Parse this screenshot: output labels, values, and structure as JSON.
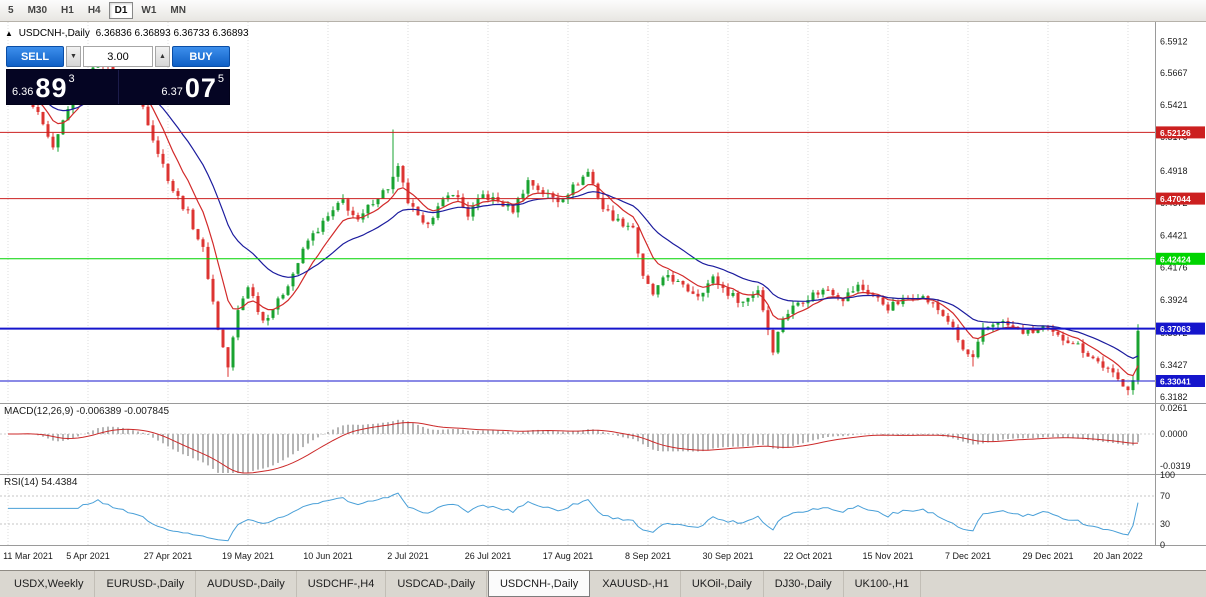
{
  "toolbar": {
    "timeframes": [
      "5",
      "M30",
      "H1",
      "H4",
      "D1",
      "W1",
      "MN"
    ],
    "active_timeframe": "D1"
  },
  "header": {
    "collapse_icon": "▲",
    "title": "USDCNH-,Daily",
    "ohlc": "6.36836 6.36893 6.36733 6.36893"
  },
  "trade_panel": {
    "sell_label": "SELL",
    "buy_label": "BUY",
    "volume": "3.00",
    "volume_down_glyph": "▼",
    "volume_up_glyph": "▲",
    "sell_price_main": "6.36",
    "sell_price_big": "89",
    "sell_price_sup": "3",
    "buy_price_main": "6.37",
    "buy_price_big": "07",
    "buy_price_sup": "5"
  },
  "chart_data": {
    "type": "candlestick",
    "symbol": "USDCNH-,Daily",
    "x_labels": [
      "11 Mar 2021",
      "5 Apr 2021",
      "27 Apr 2021",
      "19 May 2021",
      "10 Jun 2021",
      "2 Jul 2021",
      "26 Jul 2021",
      "17 Aug 2021",
      "8 Sep 2021",
      "30 Sep 2021",
      "22 Oct 2021",
      "15 Nov 2021",
      "7 Dec 2021",
      "29 Dec 2021",
      "20 Jan 2022"
    ],
    "candles_per_label": 16,
    "num_candles": 227,
    "price_range_top": 6.606,
    "price_range_bottom": 6.3135,
    "price_axis_ticks": [
      "6.5912",
      "6.5667",
      "6.5421",
      "6.5176",
      "6.4918",
      "6.4672",
      "6.4421",
      "6.4176",
      "6.3924",
      "6.3672",
      "6.3427",
      "6.3182"
    ],
    "hlines": [
      {
        "price": 6.52126,
        "label": "6.52126",
        "color": "#cc2020",
        "width": 1
      },
      {
        "price": 6.47044,
        "label": "6.47044",
        "color": "#cc2020",
        "width": 1
      },
      {
        "price": 6.42424,
        "label": "6.42424",
        "color": "#00d400",
        "width": 1
      },
      {
        "price": 6.37063,
        "label": "6.37063",
        "color": "#1515cc",
        "width": 2
      },
      {
        "price": 6.33041,
        "label": "6.33041",
        "color": "#1515cc",
        "width": 1
      }
    ],
    "close_waypoints": [
      [
        0,
        6.547
      ],
      [
        3,
        6.553
      ],
      [
        6,
        6.534
      ],
      [
        9,
        6.507
      ],
      [
        12,
        6.541
      ],
      [
        15,
        6.563
      ],
      [
        18,
        6.579
      ],
      [
        21,
        6.566
      ],
      [
        24,
        6.553
      ],
      [
        27,
        6.541
      ],
      [
        30,
        6.506
      ],
      [
        33,
        6.477
      ],
      [
        36,
        6.459
      ],
      [
        39,
        6.431
      ],
      [
        42,
        6.371
      ],
      [
        44,
        6.341
      ],
      [
        46,
        6.384
      ],
      [
        48,
        6.404
      ],
      [
        51,
        6.377
      ],
      [
        54,
        6.391
      ],
      [
        57,
        6.413
      ],
      [
        60,
        6.438
      ],
      [
        64,
        6.456
      ],
      [
        67,
        6.469
      ],
      [
        70,
        6.452
      ],
      [
        73,
        6.469
      ],
      [
        76,
        6.479
      ],
      [
        78,
        6.493
      ],
      [
        80,
        6.468
      ],
      [
        83,
        6.449
      ],
      [
        86,
        6.463
      ],
      [
        89,
        6.476
      ],
      [
        92,
        6.458
      ],
      [
        95,
        6.473
      ],
      [
        98,
        6.468
      ],
      [
        101,
        6.462
      ],
      [
        104,
        6.484
      ],
      [
        107,
        6.475
      ],
      [
        110,
        6.469
      ],
      [
        113,
        6.479
      ],
      [
        116,
        6.491
      ],
      [
        119,
        6.463
      ],
      [
        122,
        6.453
      ],
      [
        125,
        6.449
      ],
      [
        127,
        6.409
      ],
      [
        129,
        6.397
      ],
      [
        132,
        6.412
      ],
      [
        135,
        6.402
      ],
      [
        138,
        6.397
      ],
      [
        141,
        6.409
      ],
      [
        144,
        6.398
      ],
      [
        147,
        6.391
      ],
      [
        150,
        6.401
      ],
      [
        153,
        6.355
      ],
      [
        155,
        6.379
      ],
      [
        158,
        6.391
      ],
      [
        161,
        6.397
      ],
      [
        164,
        6.401
      ],
      [
        167,
        6.394
      ],
      [
        170,
        6.403
      ],
      [
        173,
        6.396
      ],
      [
        176,
        6.387
      ],
      [
        179,
        6.392
      ],
      [
        182,
        6.397
      ],
      [
        185,
        6.389
      ],
      [
        188,
        6.377
      ],
      [
        191,
        6.354
      ],
      [
        193,
        6.347
      ],
      [
        195,
        6.369
      ],
      [
        198,
        6.377
      ],
      [
        201,
        6.371
      ],
      [
        204,
        6.367
      ],
      [
        207,
        6.371
      ],
      [
        210,
        6.364
      ],
      [
        213,
        6.361
      ],
      [
        216,
        6.351
      ],
      [
        219,
        6.342
      ],
      [
        222,
        6.331
      ],
      [
        224,
        6.326
      ],
      [
        225,
        6.331
      ],
      [
        226,
        6.3689
      ]
    ],
    "spikes": [
      {
        "i": 18,
        "high": 6.5865
      },
      {
        "i": 44,
        "low": 6.3335
      },
      {
        "i": 77,
        "high": 6.5235
      },
      {
        "i": 193,
        "low": 6.3415
      },
      {
        "i": 224,
        "low": 6.3195
      },
      {
        "i": 226,
        "high": 6.374
      }
    ],
    "indicators": {
      "ma_fast": {
        "period": 8,
        "color": "#d22a2a"
      },
      "ma_slow": {
        "period": 22,
        "color": "#1c1c9e"
      },
      "macd": {
        "label": "MACD(12,26,9) -0.006389 -0.007845",
        "ticks": [
          "0.0261",
          "0.0000",
          "-0.0319"
        ],
        "vmax": 0.03,
        "vmin": -0.04
      },
      "rsi": {
        "label": "RSI(14) 54.4384",
        "ticks": [
          "100",
          "70",
          "30",
          "0"
        ],
        "levels": [
          70,
          30
        ]
      }
    },
    "colors": {
      "up": "#1aa331",
      "down": "#dd3432",
      "grid": "#dcdcdc",
      "macd_hist": "#b5b5b5",
      "macd_signal": "#cc2a2a",
      "rsi": "#4aa0d8"
    }
  },
  "tabs": {
    "items": [
      "USDX,Weekly",
      "EURUSD-,Daily",
      "AUDUSD-,Daily",
      "USDCHF-,H4",
      "USDCAD-,Daily",
      "USDCNH-,Daily",
      "XAUUSD-,H1",
      "UKOil-,Daily",
      "DJ30-,Daily",
      "UK100-,H1"
    ],
    "active_index": 5
  }
}
